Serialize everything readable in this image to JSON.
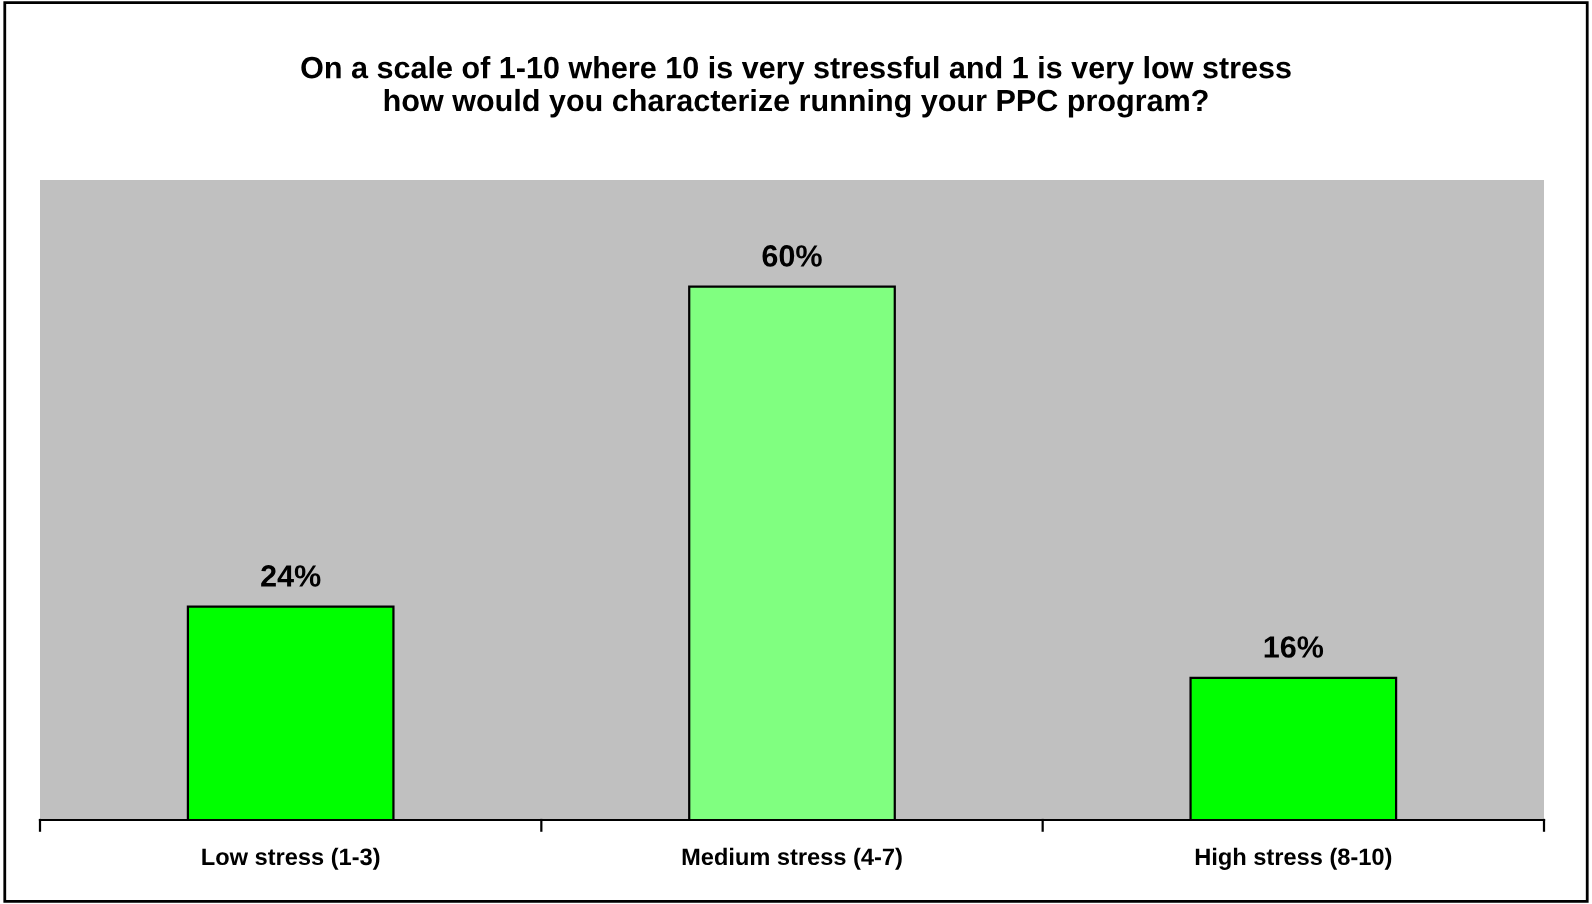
{
  "chart_data": {
    "type": "bar",
    "title": "On a scale of 1-10 where 10 is very stressful and 1 is very low stress\nhow would you characterize running your PPC program?",
    "categories": [
      "Low stress (1-3)",
      "Medium stress (4-7)",
      "High stress (8-10)"
    ],
    "values": [
      24,
      60,
      16
    ],
    "value_labels": [
      "24%",
      "60%",
      "16%"
    ],
    "colors": [
      "#00ff00",
      "#80ff80",
      "#00ff00"
    ]
  }
}
